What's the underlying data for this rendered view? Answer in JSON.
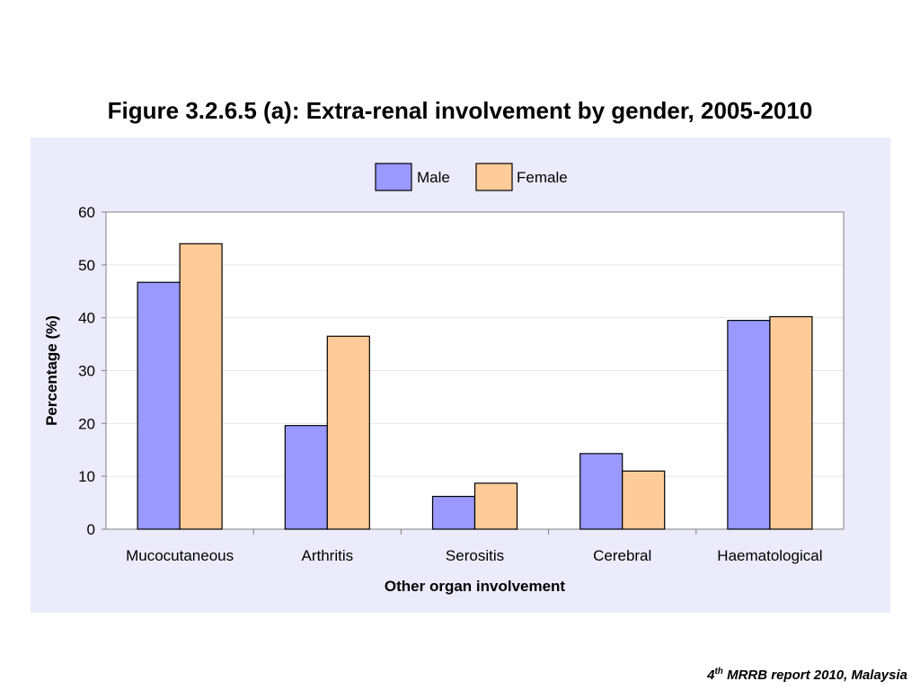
{
  "title": "Figure 3.2.6.5 (a): Extra-renal involvement by gender, 2005-2010",
  "footer": {
    "superscript_prefix": "4",
    "superscript": "th",
    "text": " MRRB report 2010, Malaysia"
  },
  "colors": {
    "panel_background": "#EBEBFB",
    "plot_background": "#FFFFFF",
    "male": "#9999FF",
    "female": "#FFCC99",
    "bar_stroke": "#000000"
  },
  "chart_data": {
    "type": "bar",
    "categories": [
      "Mucocutaneous",
      "Arthritis",
      "Serositis",
      "Cerebral",
      "Haematological"
    ],
    "series": [
      {
        "name": "Male",
        "values": [
          46.7,
          19.6,
          6.2,
          14.3,
          39.5
        ]
      },
      {
        "name": "Female",
        "values": [
          54.0,
          36.5,
          8.7,
          11.0,
          40.2
        ]
      }
    ],
    "xlabel": "Other organ involvement",
    "ylabel": "Percentage (%)",
    "ylim": [
      0,
      60
    ],
    "yticks": [
      0,
      10,
      20,
      30,
      40,
      50,
      60
    ],
    "grid": true,
    "legend_position": "top-center"
  }
}
